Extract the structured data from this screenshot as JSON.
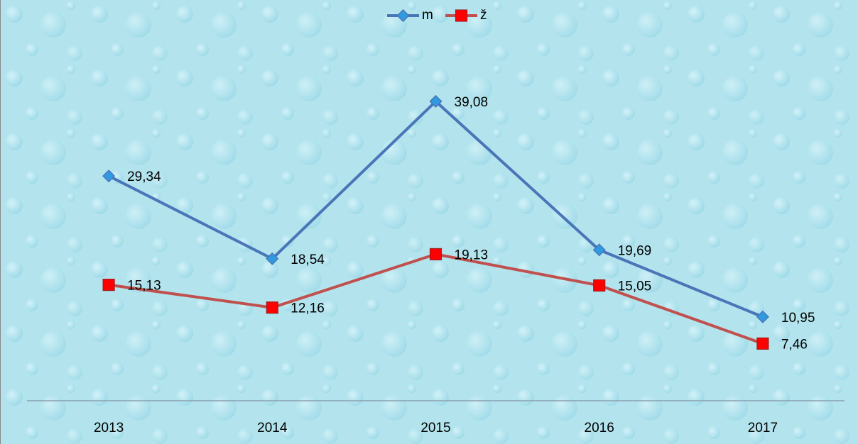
{
  "chart_data": {
    "type": "line",
    "categories": [
      "2013",
      "2014",
      "2015",
      "2016",
      "2017"
    ],
    "series": [
      {
        "name": "m",
        "color": "#4a76b8",
        "marker_color": "#2e9be0",
        "marker": "diamond",
        "values": [
          29.34,
          18.54,
          39.08,
          19.69,
          10.95
        ],
        "value_labels": [
          "29,34",
          "18,54",
          "39,08",
          "19,69",
          "10,95"
        ]
      },
      {
        "name": "ž",
        "color": "#c0504d",
        "marker_color": "#ff0000",
        "marker": "square",
        "values": [
          15.13,
          12.16,
          19.13,
          15.05,
          7.46
        ],
        "value_labels": [
          "15,13",
          "12,16",
          "19,13",
          "15,05",
          "7,46"
        ]
      }
    ],
    "ylim": [
      0,
      45
    ],
    "legend": "top"
  }
}
